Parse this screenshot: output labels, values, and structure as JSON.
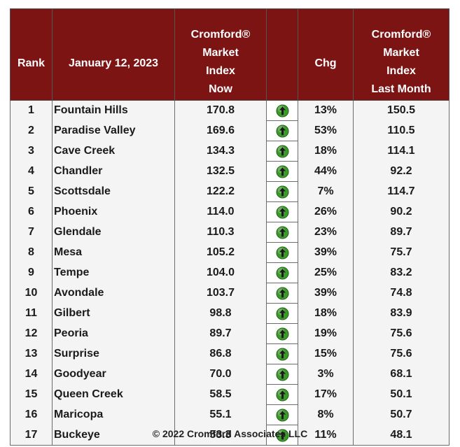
{
  "chart_data": {
    "type": "table",
    "header": {
      "rank": "Rank",
      "date": "January 12, 2023",
      "now_lines": [
        "Cromford®",
        "Market",
        "Index",
        "Now"
      ],
      "chg": "Chg",
      "last_lines": [
        "Cromford®",
        "Market",
        "Index",
        "Last Month"
      ]
    },
    "columns": [
      "Rank",
      "January 12, 2023",
      "Cromford® Market Index Now",
      "",
      "Chg",
      "Cromford® Market Index Last Month"
    ],
    "rows": [
      {
        "rank": "1",
        "city": "Fountain Hills",
        "now": "170.8",
        "direction": "up",
        "chg": "13%",
        "last": "150.5"
      },
      {
        "rank": "2",
        "city": "Paradise Valley",
        "now": "169.6",
        "direction": "up",
        "chg": "53%",
        "last": "110.5"
      },
      {
        "rank": "3",
        "city": "Cave Creek",
        "now": "134.3",
        "direction": "up",
        "chg": "18%",
        "last": "114.1"
      },
      {
        "rank": "4",
        "city": "Chandler",
        "now": "132.5",
        "direction": "up",
        "chg": "44%",
        "last": "92.2"
      },
      {
        "rank": "5",
        "city": "Scottsdale",
        "now": "122.2",
        "direction": "up",
        "chg": "7%",
        "last": "114.7"
      },
      {
        "rank": "6",
        "city": "Phoenix",
        "now": "114.0",
        "direction": "up",
        "chg": "26%",
        "last": "90.2"
      },
      {
        "rank": "7",
        "city": "Glendale",
        "now": "110.3",
        "direction": "up",
        "chg": "23%",
        "last": "89.7"
      },
      {
        "rank": "8",
        "city": "Mesa",
        "now": "105.2",
        "direction": "up",
        "chg": "39%",
        "last": "75.7"
      },
      {
        "rank": "9",
        "city": "Tempe",
        "now": "104.0",
        "direction": "up",
        "chg": "25%",
        "last": "83.2"
      },
      {
        "rank": "10",
        "city": "Avondale",
        "now": "103.7",
        "direction": "up",
        "chg": "39%",
        "last": "74.8"
      },
      {
        "rank": "11",
        "city": "Gilbert",
        "now": "98.8",
        "direction": "up",
        "chg": "18%",
        "last": "83.9"
      },
      {
        "rank": "12",
        "city": "Peoria",
        "now": "89.7",
        "direction": "up",
        "chg": "19%",
        "last": "75.6"
      },
      {
        "rank": "13",
        "city": "Surprise",
        "now": "86.8",
        "direction": "up",
        "chg": "15%",
        "last": "75.6"
      },
      {
        "rank": "14",
        "city": "Goodyear",
        "now": "70.0",
        "direction": "up",
        "chg": "3%",
        "last": "68.1"
      },
      {
        "rank": "15",
        "city": "Queen Creek",
        "now": "58.5",
        "direction": "up",
        "chg": "17%",
        "last": "50.1"
      },
      {
        "rank": "16",
        "city": "Maricopa",
        "now": "55.1",
        "direction": "up",
        "chg": "8%",
        "last": "50.7"
      },
      {
        "rank": "17",
        "city": "Buckeye",
        "now": "53.3",
        "direction": "up",
        "chg": "11%",
        "last": "48.1"
      }
    ],
    "arrow_icon": "green-up-arrow-icon",
    "colors": {
      "header_bg": "#7d1414",
      "header_text": "#ffffff",
      "arrow_green": "#3c9a2a"
    }
  },
  "footer": "© 2022 Cromford Associates LLC"
}
